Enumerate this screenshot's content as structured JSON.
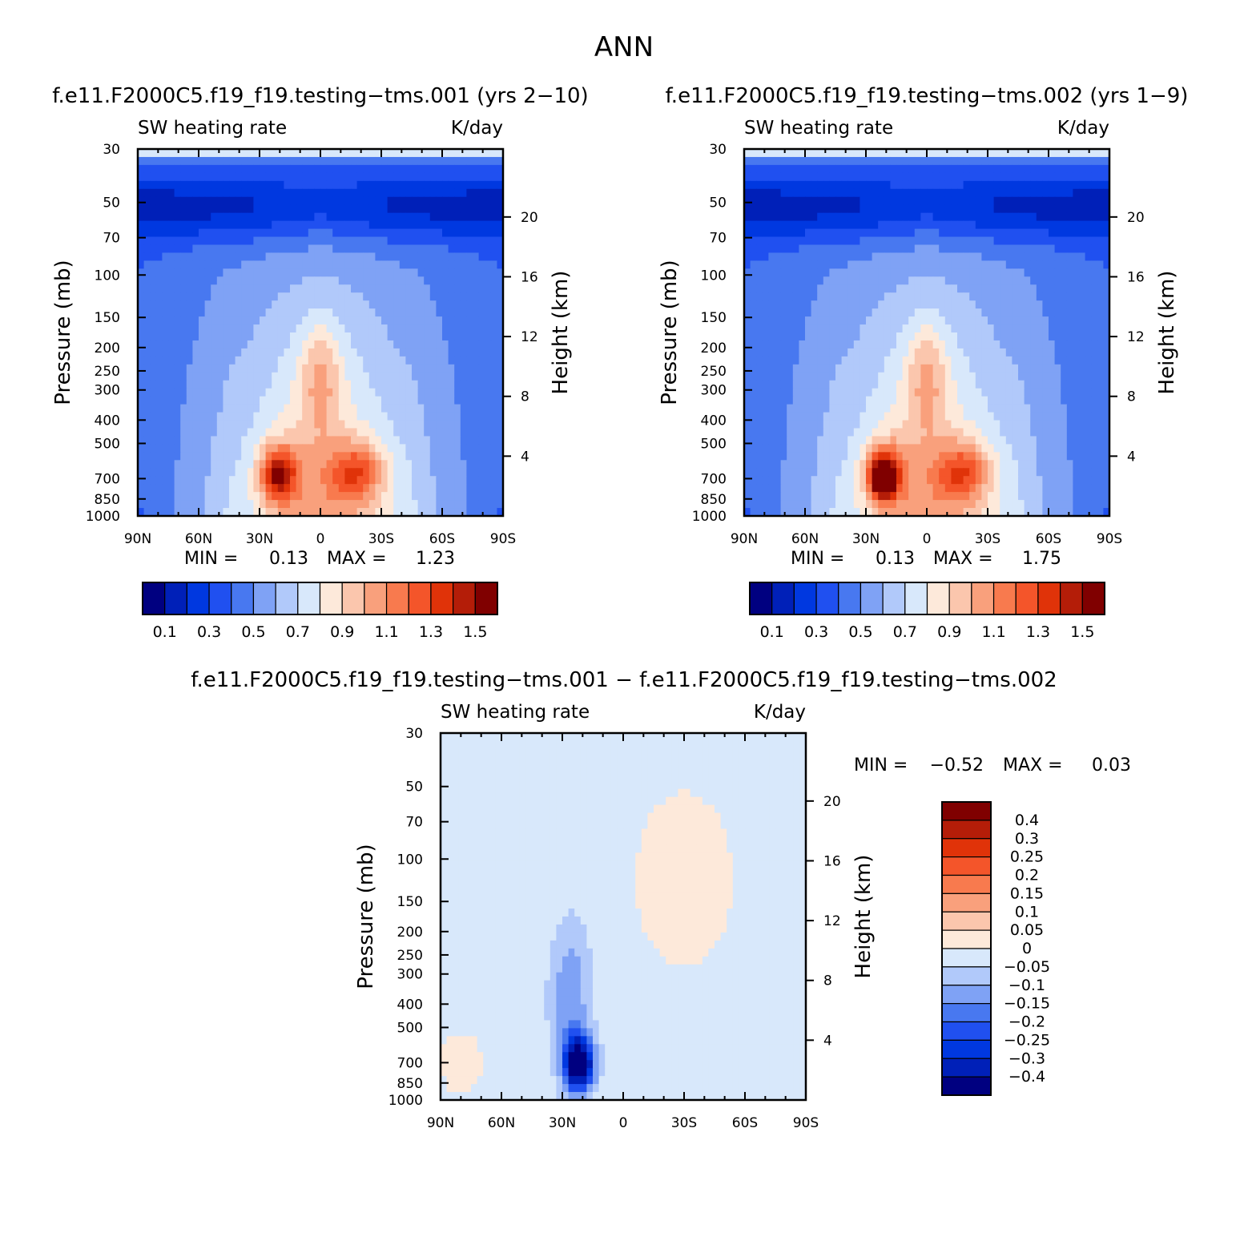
{
  "figure_title": "ANN",
  "colors": {
    "abs_palette": [
      "#000080",
      "#0020b8",
      "#0038e0",
      "#2050f0",
      "#4878f0",
      "#7fa2f5",
      "#b1c9fa",
      "#d8e8fb",
      "#fde9da",
      "#fbc6ad",
      "#f9a07c",
      "#f87a4e",
      "#f4552a",
      "#e03309",
      "#b41d08",
      "#800000"
    ],
    "diff_palette": [
      "#000080",
      "#0020b8",
      "#0038e0",
      "#2050f0",
      "#4878f0",
      "#7fa2f5",
      "#b1c9fa",
      "#d8e8fb",
      "#fde9da",
      "#fbc6ad",
      "#f9a07c",
      "#f87a4e",
      "#f4552a",
      "#e03309",
      "#b41d08",
      "#800000"
    ]
  },
  "panels": [
    {
      "title": "f.e11.F2000C5.f19_f19.testing−tms.001 (yrs 2−10)",
      "left_label": "SW heating rate",
      "right_label": "K/day",
      "min_label": "MIN =",
      "min_value": "0.13",
      "max_label": "MAX =",
      "max_value": "1.23",
      "peak_value": 1.23
    },
    {
      "title": "f.e11.F2000C5.f19_f19.testing−tms.002 (yrs 1−9)",
      "left_label": "SW heating rate",
      "right_label": "K/day",
      "min_label": "MIN =",
      "min_value": "0.13",
      "max_label": "MAX =",
      "max_value": "1.75",
      "peak_value": 1.75
    },
    {
      "title": "f.e11.F2000C5.f19_f19.testing−tms.001 − f.e11.F2000C5.f19_f19.testing−tms.002",
      "left_label": "SW heating rate",
      "right_label": "K/day",
      "min_label": "MIN =",
      "min_value": "−0.52",
      "max_label": "MAX =",
      "max_value": "0.03"
    }
  ],
  "axes": {
    "ylabel": "Pressure (mb)",
    "ylabel_right": "Height (km)",
    "pressure_ticks": [
      "30",
      "50",
      "70",
      "100",
      "150",
      "200",
      "250",
      "300",
      "400",
      "500",
      "700",
      "850",
      "1000"
    ],
    "height_ticks": [
      "20",
      "16",
      "12",
      "8",
      "4"
    ],
    "lat_ticks": [
      "90N",
      "60N",
      "30N",
      "0",
      "30S",
      "60S",
      "90S"
    ]
  },
  "abs_colorbar_labels": [
    "0.1",
    "0.3",
    "0.5",
    "0.7",
    "0.9",
    "1.1",
    "1.3",
    "1.5"
  ],
  "diff_colorbar_labels": [
    "0.4",
    "0.3",
    "0.25",
    "0.2",
    "0.15",
    "0.1",
    "0.05",
    "0",
    "−0.05",
    "−0.1",
    "−0.15",
    "−0.2",
    "−0.25",
    "−0.3",
    "−0.4"
  ],
  "chart_data": [
    {
      "type": "heatmap",
      "title": "f.e11.F2000C5.f19_f19.testing−tms.001 (yrs 2−10)",
      "variable": "SW heating rate",
      "units": "K/day",
      "xlabel": "",
      "ylabel": "Pressure (mb)",
      "ylabel_right": "Height (km)",
      "x": [
        "90N",
        "60N",
        "30N",
        "0",
        "30S",
        "60S",
        "90S"
      ],
      "xlim": [
        90,
        -90
      ],
      "ylim": [
        1000,
        30
      ],
      "yscale": "log",
      "levels": [
        0.1,
        0.2,
        0.3,
        0.4,
        0.5,
        0.6,
        0.7,
        0.8,
        0.9,
        1.0,
        1.1,
        1.2,
        1.3,
        1.4,
        1.5
      ],
      "min": 0.13,
      "max": 1.23
    },
    {
      "type": "heatmap",
      "title": "f.e11.F2000C5.f19_f19.testing−tms.002 (yrs 1−9)",
      "variable": "SW heating rate",
      "units": "K/day",
      "xlabel": "",
      "ylabel": "Pressure (mb)",
      "ylabel_right": "Height (km)",
      "x": [
        "90N",
        "60N",
        "30N",
        "0",
        "30S",
        "60S",
        "90S"
      ],
      "xlim": [
        90,
        -90
      ],
      "ylim": [
        1000,
        30
      ],
      "yscale": "log",
      "levels": [
        0.1,
        0.2,
        0.3,
        0.4,
        0.5,
        0.6,
        0.7,
        0.8,
        0.9,
        1.0,
        1.1,
        1.2,
        1.3,
        1.4,
        1.5
      ],
      "min": 0.13,
      "max": 1.75
    },
    {
      "type": "heatmap",
      "title": "f.e11.F2000C5.f19_f19.testing−tms.001 − f.e11.F2000C5.f19_f19.testing−tms.002",
      "variable": "SW heating rate",
      "units": "K/day",
      "xlabel": "",
      "ylabel": "Pressure (mb)",
      "ylabel_right": "Height (km)",
      "x": [
        "90N",
        "60N",
        "30N",
        "0",
        "30S",
        "60S",
        "90S"
      ],
      "xlim": [
        90,
        -90
      ],
      "ylim": [
        1000,
        30
      ],
      "yscale": "log",
      "levels": [
        -0.4,
        -0.3,
        -0.25,
        -0.2,
        -0.15,
        -0.1,
        -0.05,
        0,
        0.05,
        0.1,
        0.15,
        0.2,
        0.25,
        0.3,
        0.4
      ],
      "min": -0.52,
      "max": 0.03
    }
  ]
}
